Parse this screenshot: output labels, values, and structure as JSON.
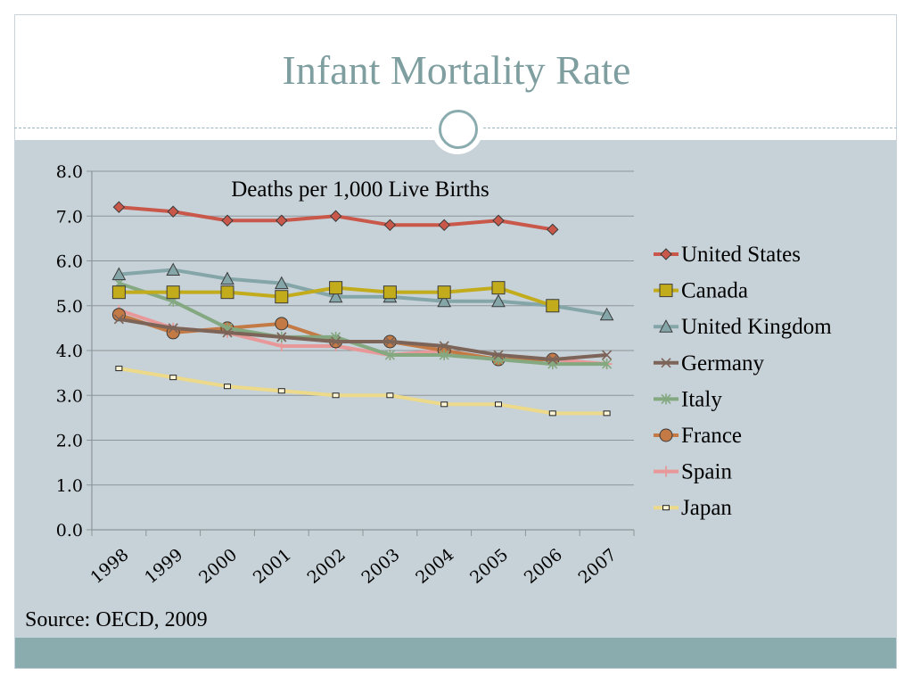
{
  "slide": {
    "title": "Infant Mortality Rate",
    "source": "Source: OECD, 2009"
  },
  "colors": {
    "title": "#7f9ea0",
    "panel": "#c6d1d8",
    "footer": "#8aacaf",
    "grid": "#8c9599"
  },
  "chart_data": {
    "type": "line",
    "subtitle": "Deaths per 1,000 Live Births",
    "categories": [
      "1998",
      "1999",
      "2000",
      "2001",
      "2002",
      "2003",
      "2004",
      "2005",
      "2006",
      "2007"
    ],
    "ylim": [
      0,
      8
    ],
    "yticks": [
      "0.0",
      "1.0",
      "2.0",
      "3.0",
      "4.0",
      "5.0",
      "6.0",
      "7.0",
      "8.0"
    ],
    "grid": true,
    "legend_position": "right",
    "series": [
      {
        "name": "United States",
        "color": "#c9584a",
        "marker": "diamond",
        "values": [
          7.2,
          7.1,
          6.9,
          6.9,
          7.0,
          6.8,
          6.8,
          6.9,
          6.7,
          null
        ]
      },
      {
        "name": "Canada",
        "color": "#c2ac1c",
        "marker": "square",
        "values": [
          5.3,
          5.3,
          5.3,
          5.2,
          5.4,
          5.3,
          5.3,
          5.4,
          5.0,
          null
        ]
      },
      {
        "name": "United Kingdom",
        "color": "#85a6a8",
        "marker": "triangle",
        "values": [
          5.7,
          5.8,
          5.6,
          5.5,
          5.2,
          5.2,
          5.1,
          5.1,
          5.0,
          4.8
        ]
      },
      {
        "name": "Germany",
        "color": "#7d6459",
        "marker": "x",
        "values": [
          4.7,
          4.5,
          4.4,
          4.3,
          4.2,
          4.2,
          4.1,
          3.9,
          3.8,
          3.9
        ]
      },
      {
        "name": "Italy",
        "color": "#84a880",
        "marker": "star",
        "values": [
          5.5,
          5.1,
          4.5,
          4.3,
          4.3,
          3.9,
          3.9,
          3.8,
          3.7,
          3.7
        ]
      },
      {
        "name": "France",
        "color": "#c47a44",
        "marker": "circle",
        "values": [
          4.8,
          4.4,
          4.5,
          4.6,
          4.2,
          4.2,
          4.0,
          3.8,
          3.8,
          null
        ]
      },
      {
        "name": "Spain",
        "color": "#e89898",
        "marker": "plus",
        "values": [
          4.9,
          4.5,
          4.4,
          4.1,
          4.1,
          3.9,
          4.0,
          3.8,
          3.8,
          3.7
        ]
      },
      {
        "name": "Japan",
        "color": "#ecd98a",
        "marker": "smallsquare",
        "values": [
          3.6,
          3.4,
          3.2,
          3.1,
          3.0,
          3.0,
          2.8,
          2.8,
          2.6,
          2.6
        ]
      }
    ]
  }
}
